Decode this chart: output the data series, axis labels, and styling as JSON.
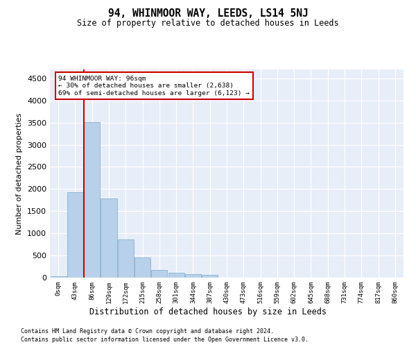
{
  "title": "94, WHINMOOR WAY, LEEDS, LS14 5NJ",
  "subtitle": "Size of property relative to detached houses in Leeds",
  "xlabel": "Distribution of detached houses by size in Leeds",
  "ylabel": "Number of detached properties",
  "footnote1": "Contains HM Land Registry data © Crown copyright and database right 2024.",
  "footnote2": "Contains public sector information licensed under the Open Government Licence v3.0.",
  "annotation_line1": "94 WHINMOOR WAY: 96sqm",
  "annotation_line2": "← 30% of detached houses are smaller (2,638)",
  "annotation_line3": "69% of semi-detached houses are larger (6,123) →",
  "bar_color": "#b8d0ea",
  "bar_edge_color": "#7aaac8",
  "vline_color": "#cc0000",
  "bin_labels": [
    "0sqm",
    "43sqm",
    "86sqm",
    "129sqm",
    "172sqm",
    "215sqm",
    "258sqm",
    "301sqm",
    "344sqm",
    "387sqm",
    "430sqm",
    "473sqm",
    "516sqm",
    "559sqm",
    "602sqm",
    "645sqm",
    "688sqm",
    "731sqm",
    "774sqm",
    "817sqm",
    "860sqm"
  ],
  "bar_values": [
    28,
    1920,
    3510,
    1780,
    860,
    455,
    165,
    105,
    75,
    62,
    0,
    0,
    0,
    0,
    0,
    0,
    0,
    0,
    0,
    0,
    0
  ],
  "ylim": [
    0,
    4700
  ],
  "yticks": [
    0,
    500,
    1000,
    1500,
    2000,
    2500,
    3000,
    3500,
    4000,
    4500
  ],
  "background_color": "#e8eef8"
}
